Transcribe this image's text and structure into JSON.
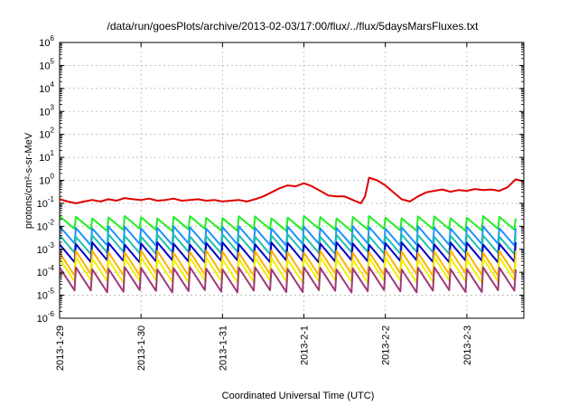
{
  "chart_data": {
    "type": "line",
    "title": "/data/run/goesPlots/archive/2013-02-03/17:00/flux/../flux/5daysMarsFluxes.txt",
    "xlabel": "Coordinated Universal Time (UTC)",
    "ylabel": "protons/cm²-s-sr-MeV",
    "y_scale": "log",
    "ylim_exp": [
      -6,
      6
    ],
    "xlim_days": [
      0,
      5.7
    ],
    "grid": true,
    "x_ticks": [
      {
        "day": 0,
        "label": "2013-1-29"
      },
      {
        "day": 1,
        "label": "2013-1-30"
      },
      {
        "day": 2,
        "label": "2013-1-31"
      },
      {
        "day": 3,
        "label": "2013-2-1"
      },
      {
        "day": 4,
        "label": "2013-2-2"
      },
      {
        "day": 5,
        "label": "2013-2-3"
      }
    ],
    "y_ticks": [
      {
        "exp": -6,
        "base": "10",
        "sup": "-6"
      },
      {
        "exp": -5,
        "base": "10",
        "sup": "-5"
      },
      {
        "exp": -4,
        "base": "10",
        "sup": "-4"
      },
      {
        "exp": -3,
        "base": "10",
        "sup": "-3"
      },
      {
        "exp": -2,
        "base": "10",
        "sup": "-2"
      },
      {
        "exp": -1,
        "base": "10",
        "sup": "-1"
      },
      {
        "exp": 0,
        "base": "10",
        "sup": "0"
      },
      {
        "exp": 1,
        "base": "10",
        "sup": "1"
      },
      {
        "exp": 2,
        "base": "10",
        "sup": "2"
      },
      {
        "exp": 3,
        "base": "10",
        "sup": "3"
      },
      {
        "exp": 4,
        "base": "10",
        "sup": "4"
      },
      {
        "exp": 5,
        "base": "10",
        "sup": "5"
      },
      {
        "exp": 6,
        "base": "10",
        "sup": "6"
      }
    ],
    "sawtooth_period_days": 0.2,
    "series": [
      {
        "color": "#e00000",
        "style": "smooth",
        "values": [
          [
            0.0,
            0.15
          ],
          [
            0.1,
            0.12
          ],
          [
            0.2,
            0.1
          ],
          [
            0.3,
            0.12
          ],
          [
            0.4,
            0.14
          ],
          [
            0.5,
            0.12
          ],
          [
            0.6,
            0.15
          ],
          [
            0.7,
            0.13
          ],
          [
            0.8,
            0.17
          ],
          [
            0.9,
            0.15
          ],
          [
            1.0,
            0.14
          ],
          [
            1.1,
            0.16
          ],
          [
            1.2,
            0.13
          ],
          [
            1.3,
            0.14
          ],
          [
            1.4,
            0.16
          ],
          [
            1.5,
            0.13
          ],
          [
            1.6,
            0.14
          ],
          [
            1.7,
            0.15
          ],
          [
            1.8,
            0.13
          ],
          [
            1.9,
            0.14
          ],
          [
            2.0,
            0.12
          ],
          [
            2.1,
            0.13
          ],
          [
            2.2,
            0.14
          ],
          [
            2.3,
            0.12
          ],
          [
            2.4,
            0.15
          ],
          [
            2.5,
            0.2
          ],
          [
            2.6,
            0.3
          ],
          [
            2.7,
            0.45
          ],
          [
            2.8,
            0.6
          ],
          [
            2.9,
            0.55
          ],
          [
            3.0,
            0.75
          ],
          [
            3.1,
            0.55
          ],
          [
            3.2,
            0.35
          ],
          [
            3.3,
            0.22
          ],
          [
            3.4,
            0.2
          ],
          [
            3.5,
            0.2
          ],
          [
            3.6,
            0.14
          ],
          [
            3.7,
            0.1
          ],
          [
            3.75,
            0.2
          ],
          [
            3.8,
            1.3
          ],
          [
            3.9,
            1.0
          ],
          [
            4.0,
            0.6
          ],
          [
            4.1,
            0.3
          ],
          [
            4.2,
            0.15
          ],
          [
            4.3,
            0.12
          ],
          [
            4.4,
            0.2
          ],
          [
            4.5,
            0.3
          ],
          [
            4.6,
            0.35
          ],
          [
            4.7,
            0.4
          ],
          [
            4.8,
            0.32
          ],
          [
            4.9,
            0.38
          ],
          [
            5.0,
            0.35
          ],
          [
            5.1,
            0.42
          ],
          [
            5.2,
            0.38
          ],
          [
            5.3,
            0.4
          ],
          [
            5.4,
            0.35
          ],
          [
            5.5,
            0.5
          ],
          [
            5.6,
            1.1
          ],
          [
            5.7,
            0.9
          ]
        ]
      },
      {
        "color": "#22ee22",
        "style": "sawtooth",
        "high": 0.025,
        "low": 0.007
      },
      {
        "color": "#1e90ff",
        "style": "sawtooth",
        "high": 0.009,
        "low": 0.0016
      },
      {
        "color": "#20c0b0",
        "style": "sawtooth",
        "high": 0.004,
        "low": 0.0007
      },
      {
        "color": "#0000c8",
        "style": "sawtooth",
        "high": 0.0018,
        "low": 0.0003
      },
      {
        "color": "#ffb000",
        "style": "sawtooth",
        "high": 0.0008,
        "low": 8e-05
      },
      {
        "color": "#f0f000",
        "style": "sawtooth",
        "high": 0.0004,
        "low": 4e-05
      },
      {
        "color": "#a03878",
        "style": "sawtooth",
        "high": 0.00015,
        "low": 1.5e-05
      }
    ]
  }
}
